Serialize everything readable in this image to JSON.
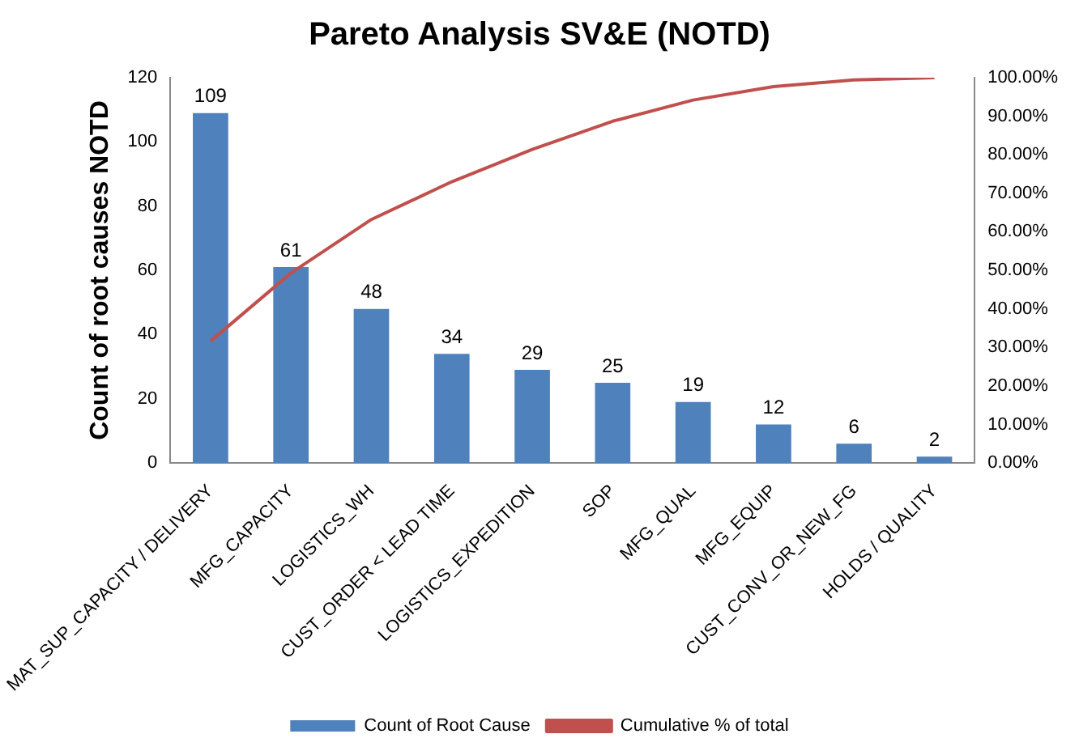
{
  "chart_data": {
    "type": "bar",
    "title": "Pareto Analysis SV&E (NOTD)",
    "ylabel": "Count of root causes NOTD",
    "categories": [
      "MAT_SUP_CAPACITY / DELIVERY",
      "MFG_CAPACITY",
      "LOGISTICS_WH",
      "CUST_ORDER < LEAD TIME",
      "LOGISTICS_EXPEDITION",
      "SOP",
      "MFG_QUAL",
      "MFG_EQUIP",
      "CUST_CONV_OR_NEW_FG",
      "HOLDS / QUALITY"
    ],
    "series": [
      {
        "name": "Count of Root Cause",
        "color": "#4f81bd",
        "values": [
          109,
          61,
          48,
          34,
          29,
          25,
          19,
          12,
          6,
          2
        ],
        "value_labels": [
          "109",
          "61",
          "48",
          "34",
          "29",
          "25",
          "19",
          "12",
          "6",
          "2"
        ]
      },
      {
        "name": "Cumulative % of total",
        "type": "line",
        "axis": "y2",
        "color": "#c0504d",
        "values": [
          31.6,
          49.3,
          63.2,
          73.0,
          81.4,
          88.7,
          94.2,
          97.7,
          99.4,
          100
        ]
      }
    ],
    "ylim": [
      0,
      120
    ],
    "yticks": [
      0,
      20,
      40,
      60,
      80,
      100,
      120
    ],
    "y2lim": [
      0,
      100
    ],
    "y2ticks": [
      {
        "value": 0,
        "label": "0.00%"
      },
      {
        "value": 10,
        "label": "10.00%"
      },
      {
        "value": 20,
        "label": "20.00%"
      },
      {
        "value": 30,
        "label": "30.00%"
      },
      {
        "value": 40,
        "label": "40.00%"
      },
      {
        "value": 50,
        "label": "50.00%"
      },
      {
        "value": 60,
        "label": "60.00%"
      },
      {
        "value": 70,
        "label": "70.00%"
      },
      {
        "value": 80,
        "label": "80.00%"
      },
      {
        "value": 90,
        "label": "90.00%"
      },
      {
        "value": 100,
        "label": "100.00%"
      }
    ],
    "grid": false,
    "legend": "bottom",
    "marker": "none"
  }
}
